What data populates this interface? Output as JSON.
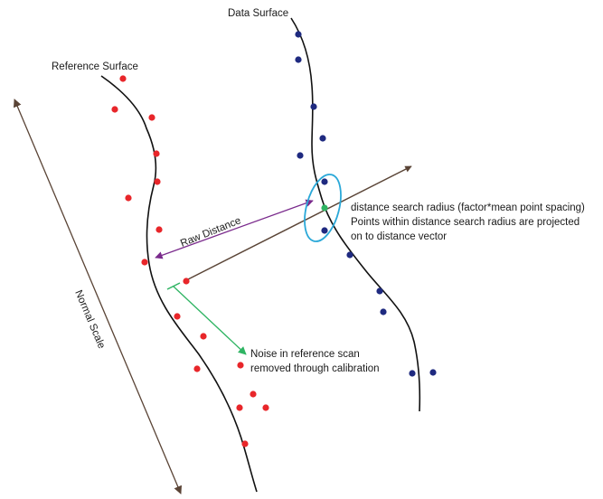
{
  "labels": {
    "data_surface": "Data Surface",
    "reference_surface": "Reference Surface",
    "raw_distance": "Raw Distance",
    "normal_scale": "Normal Scale",
    "search_radius_line1": "distance search radius (factor*mean point spacing)",
    "search_radius_line2": "Points within distance search radius are projected",
    "search_radius_line3": "on to distance vector",
    "noise_line1": "Noise in reference scan",
    "noise_line2": "removed through calibration"
  },
  "colors": {
    "reference_points": "#e8262a",
    "data_points": "#1f2a80",
    "curves": "#111111",
    "distance_vector": "#5a4436",
    "raw_distance_arrow": "#7a2a8c",
    "search_ellipse": "#2aa8d8",
    "noise_arrow": "#2fb463",
    "projected_point": "#2fb463",
    "normal_scale_arrow": "#5a4436"
  }
}
